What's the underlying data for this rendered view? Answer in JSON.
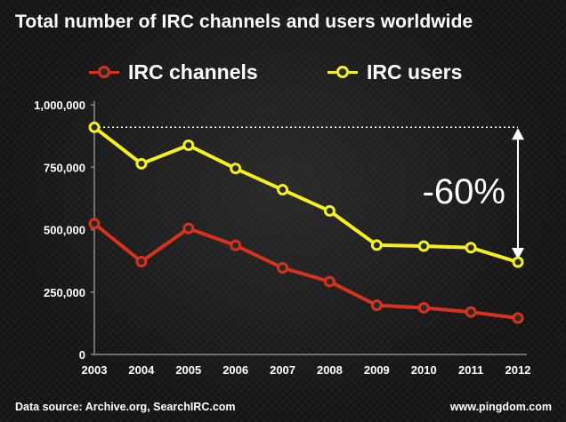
{
  "chart_data": {
    "type": "line",
    "title": "Total number of IRC channels and users worldwide",
    "categories": [
      "2003",
      "2004",
      "2005",
      "2006",
      "2007",
      "2008",
      "2009",
      "2010",
      "2011",
      "2012"
    ],
    "series": [
      {
        "name": "IRC channels",
        "color": "#d8311d",
        "values": [
          524000,
          372000,
          505000,
          437000,
          347000,
          292000,
          197000,
          187000,
          170000,
          146000
        ]
      },
      {
        "name": "IRC users",
        "color": "#f5f01e",
        "values": [
          910000,
          764000,
          838000,
          745000,
          660000,
          575000,
          438000,
          434000,
          428000,
          370000
        ]
      }
    ],
    "ylim": [
      0,
      1000000
    ],
    "yticks": [
      0,
      250000,
      500000,
      750000,
      1000000
    ],
    "ytick_labels": [
      "0",
      "250,000",
      "500,000",
      "750,000",
      "1,000,000"
    ],
    "xlabel": "",
    "ylabel": "",
    "legend_position": "top",
    "annotation": {
      "text": "-60%",
      "from_value": 910000,
      "to_value": 370000
    }
  },
  "footer": {
    "source": "Data source: Archive.org, SearchIRC.com",
    "site": "www.pingdom.com"
  },
  "colors": {
    "background": "#141414",
    "channels": "#d8311d",
    "users": "#f5f01e",
    "marker_fill": "#2a2a2a"
  }
}
